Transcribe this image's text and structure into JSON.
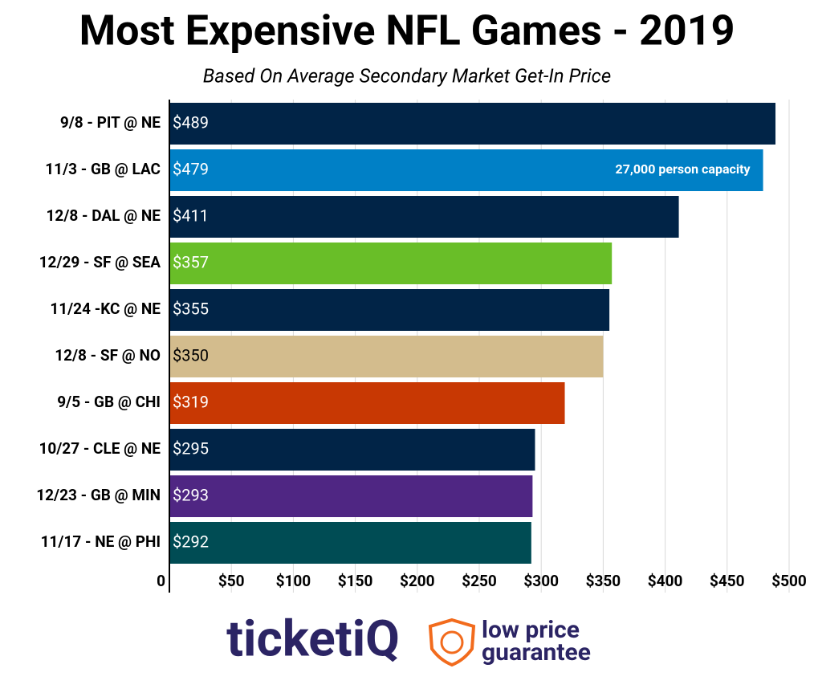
{
  "chart_data": {
    "type": "bar",
    "orientation": "horizontal",
    "title": "Most Expensive NFL Games - 2019",
    "subtitle": "Based On Average Secondary Market Get-In Price",
    "categories": [
      "9/8 - PIT @ NE",
      "11/3 - GB @ LAC",
      "12/8 - DAL @ NE",
      "12/29 - SF @ SEA",
      "11/24 -KC @ NE",
      "12/8 - SF @ NO",
      "9/5 - GB @ CHI",
      "10/27 - CLE @ NE",
      "12/23 - GB @ MIN",
      "11/17 - NE @ PHI"
    ],
    "values": [
      489,
      479,
      411,
      357,
      355,
      350,
      319,
      295,
      293,
      292
    ],
    "value_labels": [
      "$489",
      "$479",
      "$411",
      "$357",
      "$355",
      "$350",
      "$319",
      "$295",
      "$293",
      "$292"
    ],
    "colors": [
      "#012447",
      "#0080c6",
      "#012447",
      "#69be28",
      "#012447",
      "#d3bc8d",
      "#c83803",
      "#012447",
      "#4f2683",
      "#004c54"
    ],
    "annotation": "27,000 person capacity",
    "xlim": [
      0,
      500
    ],
    "xticks": [
      0,
      {
        "value": 50,
        "label": "$50"
      },
      {
        "value": 100,
        "label": "$100"
      },
      {
        "value": 150,
        "label": "$150"
      },
      {
        "value": 200,
        "label": "$200"
      },
      {
        "value": 250,
        "label": "$250"
      },
      {
        "value": 300,
        "label": "$300"
      },
      {
        "value": 350,
        "label": "$350"
      },
      {
        "value": 400,
        "label": "$400"
      },
      {
        "value": 450,
        "label": "$450"
      },
      {
        "value": 500,
        "label": "$500"
      }
    ],
    "grid": true
  },
  "logo": {
    "brand": "ticketiQ",
    "tagline": [
      "low price",
      "guarantee"
    ]
  }
}
